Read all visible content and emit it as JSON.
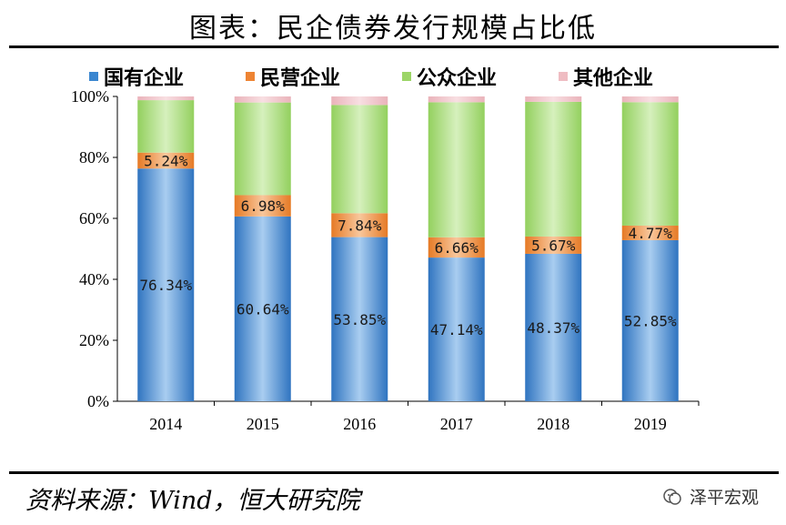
{
  "title": "图表：民企债券发行规模占比低",
  "source": "资料来源：Wind，恒大研究院",
  "watermark": "泽平宏观",
  "chart_data": {
    "type": "bar",
    "stacked": true,
    "categories": [
      "2014",
      "2015",
      "2016",
      "2017",
      "2018",
      "2019"
    ],
    "series": [
      {
        "name": "国有企业",
        "color": "#3a86d0",
        "values": [
          76.34,
          60.64,
          53.85,
          47.14,
          48.37,
          52.85
        ],
        "labels": [
          "76.34%",
          "60.64%",
          "53.85%",
          "47.14%",
          "48.37%",
          "52.85%"
        ]
      },
      {
        "name": "民营企业",
        "color": "#ee8433",
        "values": [
          5.24,
          6.98,
          7.84,
          6.66,
          5.67,
          4.77
        ],
        "labels": [
          "5.24%",
          "6.98%",
          "7.84%",
          "6.66%",
          "5.67%",
          "4.77%"
        ]
      },
      {
        "name": "公众企业",
        "color": "#9cd567",
        "values": [
          17.2,
          30.4,
          35.5,
          44.3,
          44.2,
          40.5
        ]
      },
      {
        "name": "其他企业",
        "color": "#efbcc2",
        "values": [
          1.22,
          1.98,
          2.81,
          1.9,
          1.76,
          1.88
        ]
      }
    ],
    "yticks": [
      "0%",
      "20%",
      "40%",
      "60%",
      "80%",
      "100%"
    ],
    "ylim": [
      0,
      100
    ],
    "legend": "top"
  }
}
